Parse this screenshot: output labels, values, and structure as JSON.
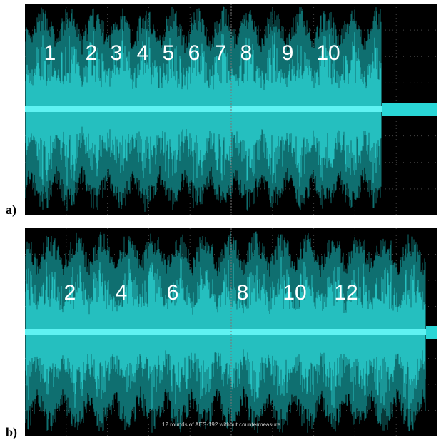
{
  "panels": [
    {
      "label": "a)",
      "round_labels": [
        "1",
        "2",
        "3",
        "4",
        "5",
        "6",
        "7",
        "8",
        "9",
        "10"
      ]
    },
    {
      "label": "b)",
      "round_labels": [
        "2",
        "4",
        "6",
        "8",
        "10",
        "12"
      ],
      "caption": "12 rounds of AES-192 without countermeasure"
    }
  ]
}
